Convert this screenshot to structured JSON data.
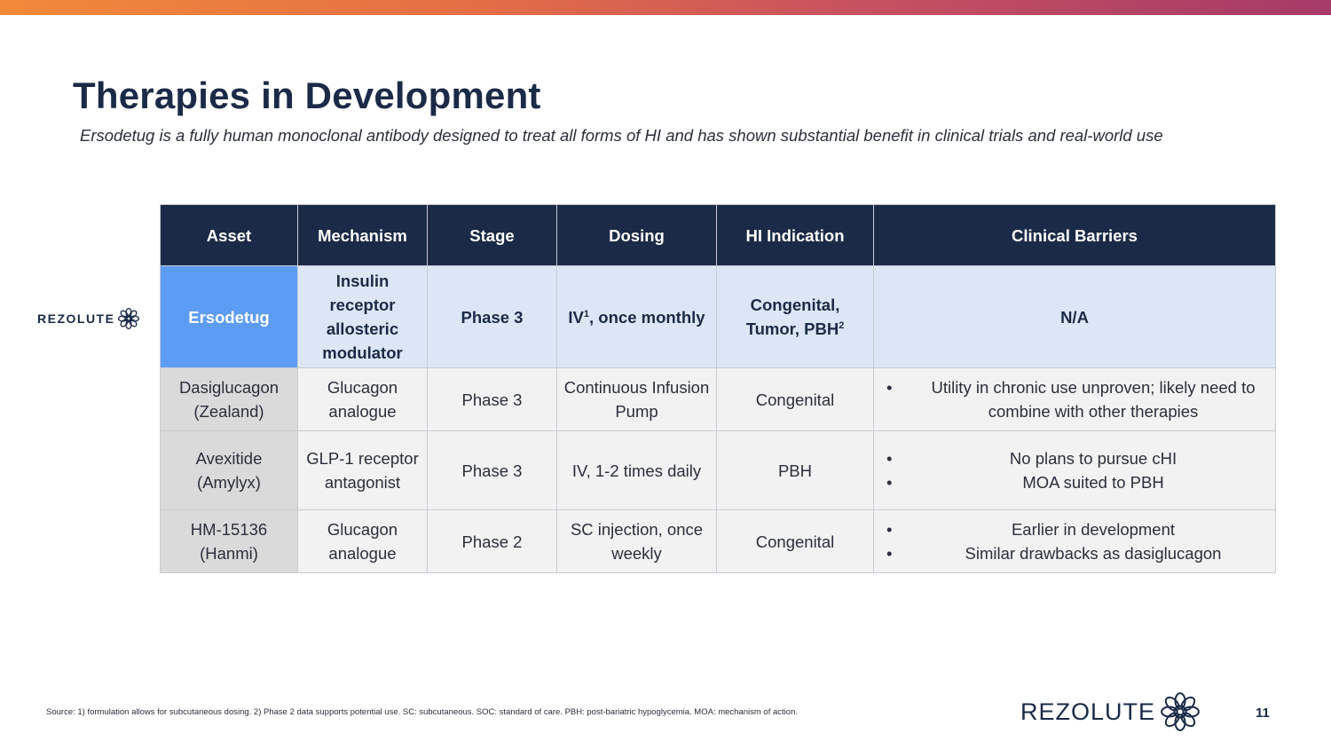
{
  "slide": {
    "title": "Therapies in Development",
    "subtitle": "Ersodetug is a fully human monoclonal antibody designed to treat all forms of HI and has shown substantial benefit in clinical trials and real-world use",
    "brand": "REZOLUTE",
    "footnote": "Source: 1) formulation allows for subcutaneous dosing. 2) Phase 2 data supports potential use. SC: subcutaneous. SOC: standard of care. PBH: post-bariatric hypoglycemia. MOA: mechanism of action.",
    "page_number": "11"
  },
  "table": {
    "headers": [
      "Asset",
      "Mechanism",
      "Stage",
      "Dosing",
      "HI Indication",
      "Clinical Barriers"
    ],
    "rows": [
      {
        "asset": "Ersodetug",
        "mechanism": "Insulin receptor allosteric modulator",
        "stage": "Phase 3",
        "dosing_main": "IV",
        "dosing_sup": "1",
        "dosing_rest": ", once monthly",
        "indication_main": "Congenital, Tumor, PBH",
        "indication_sup": "2",
        "barriers": [
          "N/A"
        ]
      },
      {
        "asset": "Dasiglucagon (Zealand)",
        "mechanism": "Glucagon analogue",
        "stage": "Phase 3",
        "dosing": "Continuous Infusion Pump",
        "indication": "Congenital",
        "barriers": [
          "Utility in chronic use unproven; likely need to combine with other therapies"
        ]
      },
      {
        "asset": "Avexitide (Amylyx)",
        "mechanism": "GLP-1 receptor antagonist",
        "stage": "Phase 3",
        "dosing": "IV, 1-2 times daily",
        "indication": "PBH",
        "barriers": [
          "No plans to pursue cHI",
          "MOA suited to PBH"
        ]
      },
      {
        "asset": "HM-15136 (Hanmi)",
        "mechanism": "Glucagon analogue",
        "stage": "Phase 2",
        "dosing": "SC injection, once weekly",
        "indication": "Congenital",
        "barriers": [
          "Earlier in development",
          "Similar drawbacks as dasiglucagon"
        ]
      }
    ]
  },
  "colors": {
    "navy": "#1b2a47",
    "highlight_blue": "#5d9cf5",
    "featured_row": "#dde6f6",
    "row_gray": "#f2f2f2",
    "asset_gray": "#dadada"
  },
  "icons": [
    "rezolute-flower-logo-icon"
  ]
}
